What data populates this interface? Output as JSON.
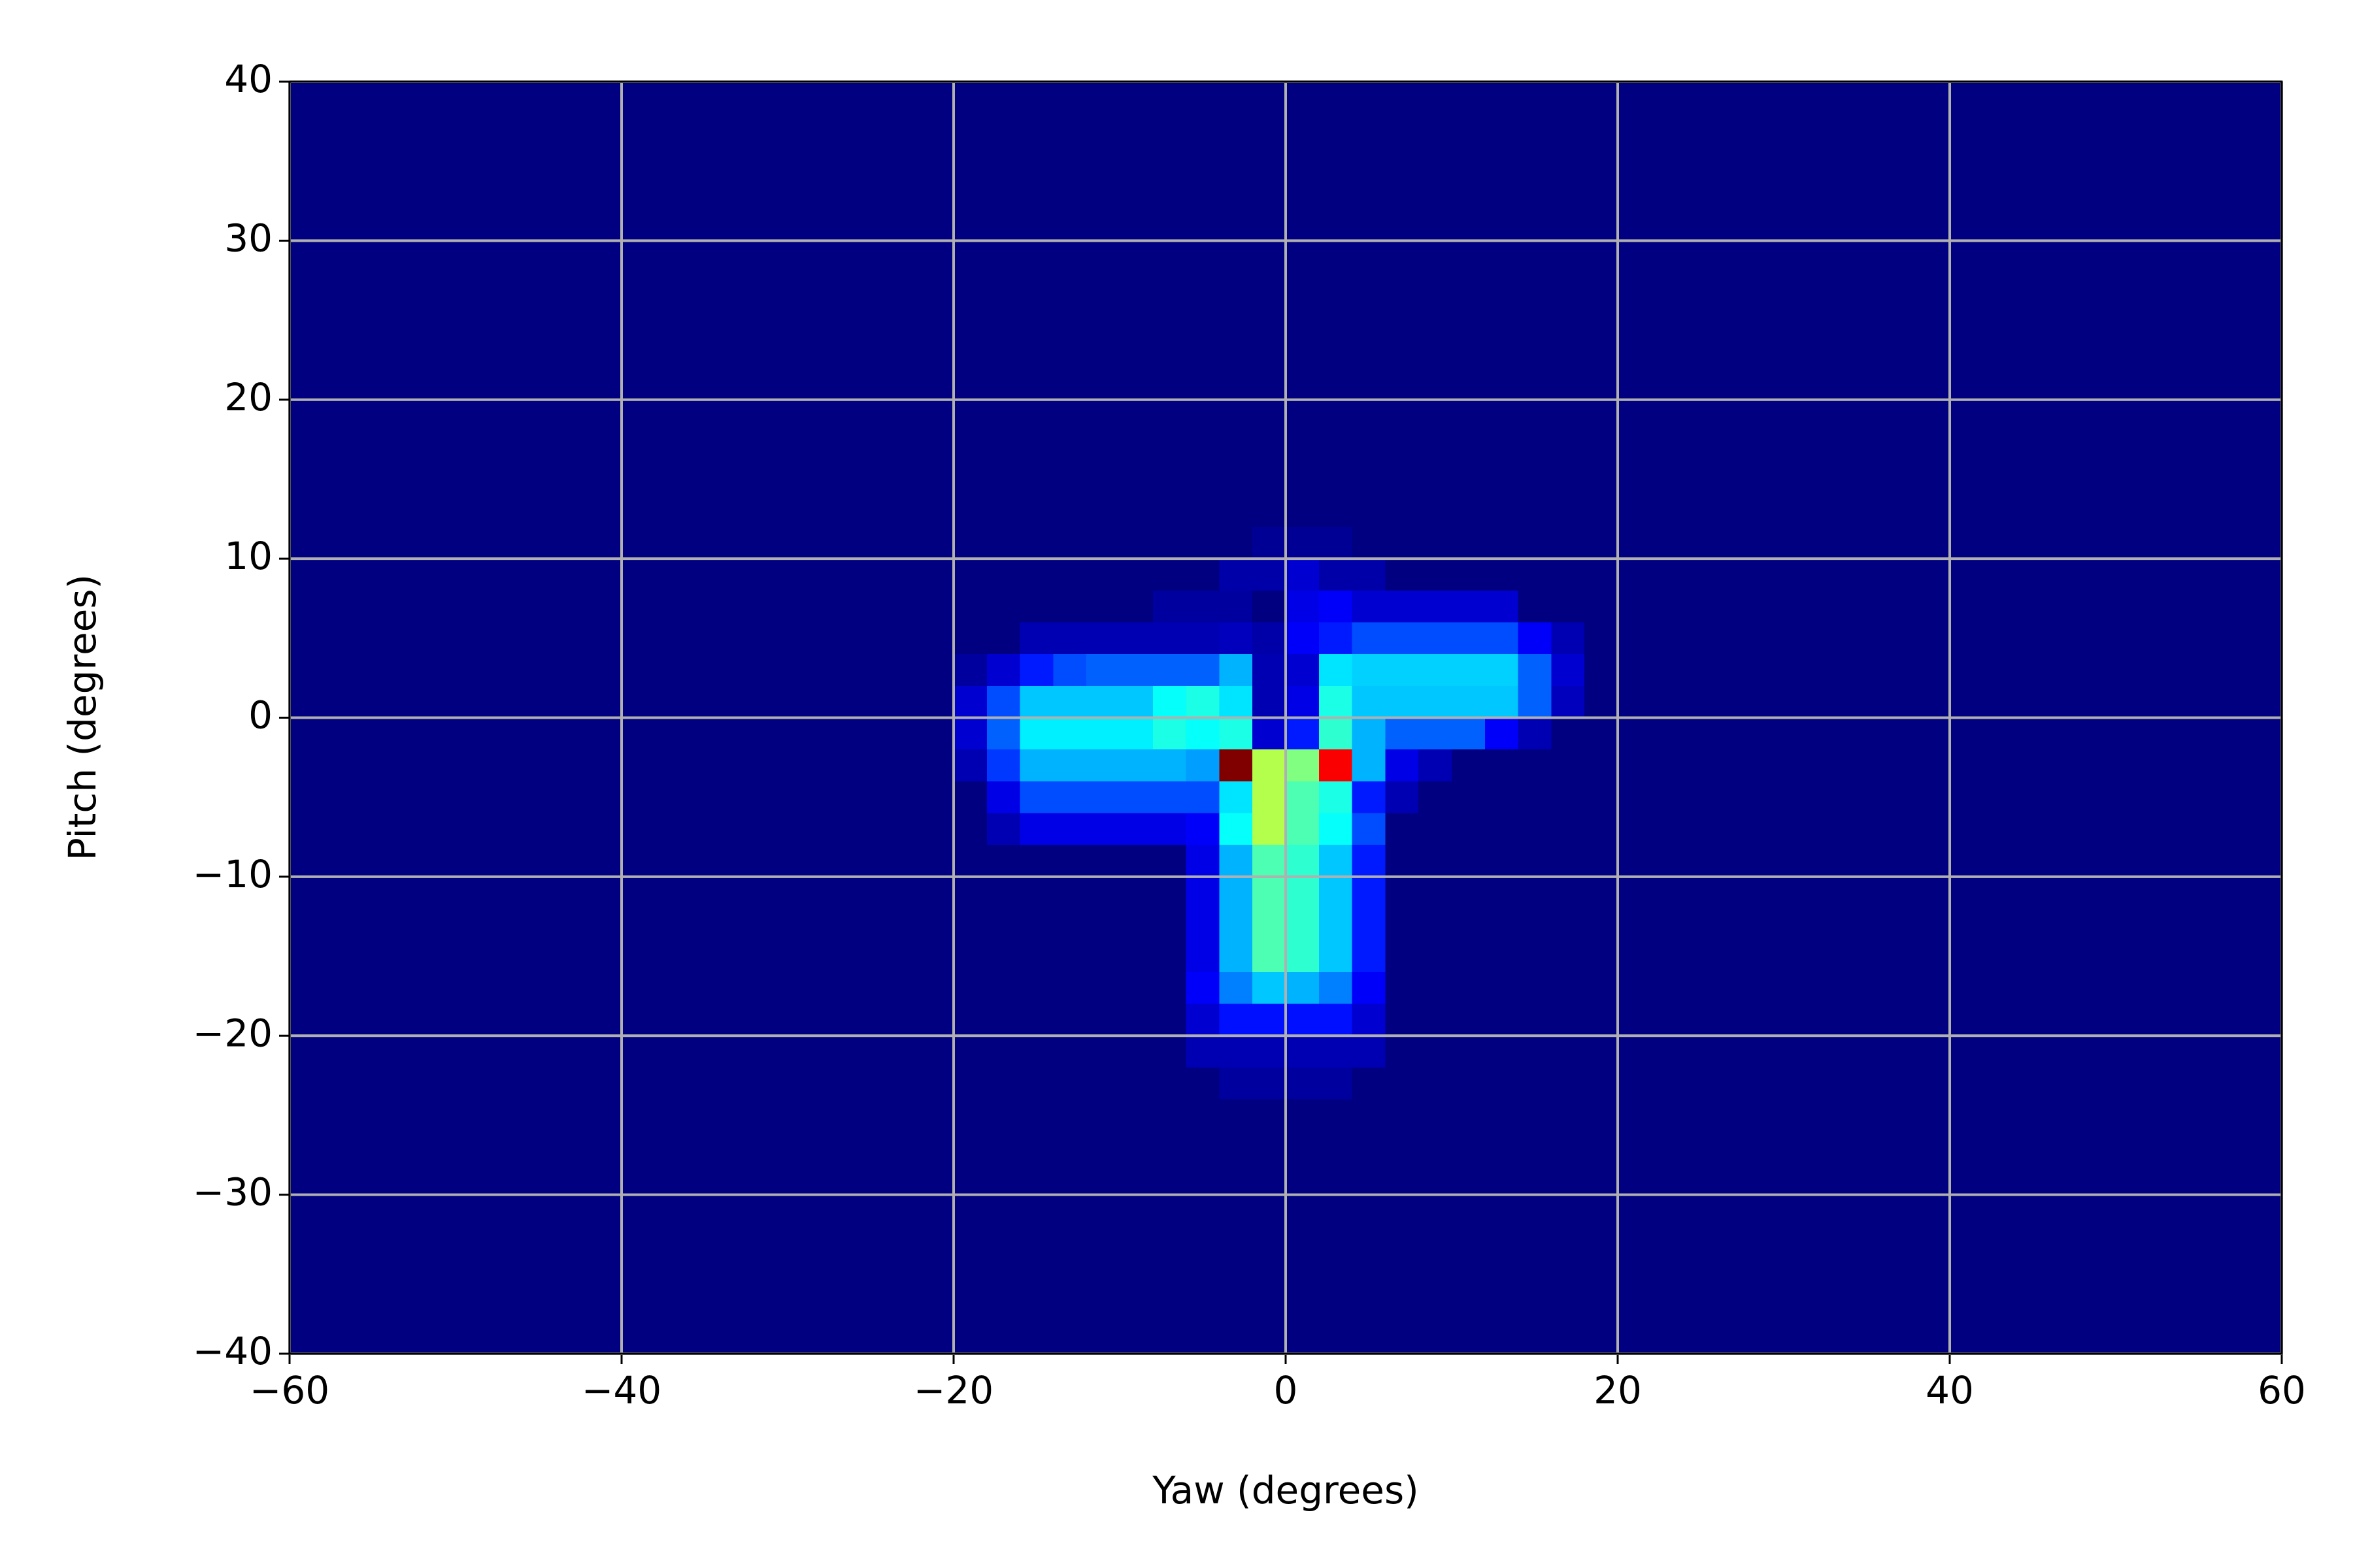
{
  "chart_data": {
    "type": "heatmap",
    "colormap": "jet",
    "zlim": [
      0,
      1
    ],
    "grid": true,
    "xlabel": "Yaw (degrees)",
    "ylabel": "Pitch (degrees)",
    "xlim": [
      -60,
      60
    ],
    "ylim": [
      -40,
      40
    ],
    "xticks": [
      {
        "value": -60,
        "label": "−60"
      },
      {
        "value": -40,
        "label": "−40"
      },
      {
        "value": -20,
        "label": "−20"
      },
      0,
      20,
      40,
      60
    ],
    "yticks": [
      {
        "value": -40,
        "label": "−40"
      },
      {
        "value": -30,
        "label": "−30"
      },
      {
        "value": -20,
        "label": "−20"
      },
      {
        "value": -10,
        "label": "−10"
      },
      0,
      10,
      20,
      30,
      40
    ],
    "xbins": [
      -24,
      -22,
      -20,
      -18,
      -16,
      -14,
      -12,
      -10,
      -8,
      -6,
      -4,
      -2,
      0,
      2,
      4,
      6,
      8,
      10,
      12,
      14,
      16,
      18,
      20,
      22,
      24
    ],
    "ybins": [
      12,
      10,
      8,
      6,
      4,
      2,
      0,
      -2,
      -4,
      -6,
      -8,
      -10,
      -12,
      -14,
      -16,
      -18,
      -20,
      -22,
      -24,
      -26
    ],
    "z": [
      [
        0,
        0,
        0,
        0,
        0,
        0,
        0,
        0,
        0,
        0,
        0,
        0.02,
        0.02,
        0.02,
        0,
        0,
        0,
        0,
        0,
        0,
        0,
        0,
        0,
        0
      ],
      [
        0,
        0,
        0,
        0,
        0,
        0,
        0,
        0,
        0,
        0,
        0.04,
        0.04,
        0.08,
        0.04,
        0.04,
        0,
        0,
        0,
        0,
        0,
        0,
        0,
        0,
        0
      ],
      [
        0,
        0,
        0,
        0,
        0,
        0,
        0,
        0,
        0.03,
        0.03,
        0.03,
        0,
        0.1,
        0.12,
        0.08,
        0.08,
        0.08,
        0.08,
        0.08,
        0,
        0,
        0,
        0,
        0
      ],
      [
        0,
        0,
        0,
        0,
        0.05,
        0.05,
        0.05,
        0.05,
        0.05,
        0.05,
        0.06,
        0.04,
        0.12,
        0.15,
        0.2,
        0.2,
        0.2,
        0.2,
        0.2,
        0.12,
        0.05,
        0,
        0,
        0
      ],
      [
        0,
        0,
        0.03,
        0.08,
        0.15,
        0.2,
        0.22,
        0.22,
        0.22,
        0.22,
        0.3,
        0.05,
        0.08,
        0.35,
        0.33,
        0.33,
        0.33,
        0.33,
        0.33,
        0.22,
        0.08,
        0,
        0,
        0
      ],
      [
        0,
        0,
        0.08,
        0.2,
        0.32,
        0.32,
        0.32,
        0.32,
        0.38,
        0.4,
        0.35,
        0.05,
        0.1,
        0.4,
        0.32,
        0.32,
        0.32,
        0.32,
        0.32,
        0.22,
        0.06,
        0,
        0,
        0
      ],
      [
        0,
        0,
        0.08,
        0.22,
        0.36,
        0.36,
        0.36,
        0.36,
        0.4,
        0.38,
        0.4,
        0.08,
        0.15,
        0.42,
        0.3,
        0.22,
        0.22,
        0.22,
        0.12,
        0.05,
        0,
        0,
        0,
        0
      ],
      [
        0,
        0,
        0.05,
        0.18,
        0.3,
        0.3,
        0.3,
        0.3,
        0.3,
        0.28,
        1,
        0.55,
        0.5,
        0.88,
        0.3,
        0.1,
        0.05,
        0,
        0,
        0,
        0,
        0,
        0,
        0
      ],
      [
        0,
        0,
        0,
        0.1,
        0.2,
        0.2,
        0.2,
        0.2,
        0.2,
        0.2,
        0.35,
        0.55,
        0.45,
        0.4,
        0.15,
        0.05,
        0,
        0,
        0,
        0,
        0,
        0,
        0,
        0
      ],
      [
        0,
        0,
        0,
        0.05,
        0.1,
        0.1,
        0.1,
        0.1,
        0.1,
        0.12,
        0.38,
        0.55,
        0.45,
        0.38,
        0.2,
        0,
        0,
        0,
        0,
        0,
        0,
        0,
        0,
        0
      ],
      [
        0,
        0,
        0,
        0,
        0,
        0,
        0,
        0,
        0,
        0.1,
        0.3,
        0.45,
        0.42,
        0.32,
        0.15,
        0,
        0,
        0,
        0,
        0,
        0,
        0,
        0,
        0
      ],
      [
        0,
        0,
        0,
        0,
        0,
        0,
        0,
        0,
        0,
        0.1,
        0.3,
        0.45,
        0.42,
        0.32,
        0.15,
        0,
        0,
        0,
        0,
        0,
        0,
        0,
        0,
        0
      ],
      [
        0,
        0,
        0,
        0,
        0,
        0,
        0,
        0,
        0,
        0.1,
        0.3,
        0.45,
        0.42,
        0.32,
        0.15,
        0,
        0,
        0,
        0,
        0,
        0,
        0,
        0,
        0
      ],
      [
        0,
        0,
        0,
        0,
        0,
        0,
        0,
        0,
        0,
        0.1,
        0.3,
        0.45,
        0.42,
        0.32,
        0.15,
        0,
        0,
        0,
        0,
        0,
        0,
        0,
        0,
        0
      ],
      [
        0,
        0,
        0,
        0,
        0,
        0,
        0,
        0,
        0,
        0.12,
        0.25,
        0.32,
        0.3,
        0.25,
        0.12,
        0,
        0,
        0,
        0,
        0,
        0,
        0,
        0,
        0
      ],
      [
        0,
        0,
        0,
        0,
        0,
        0,
        0,
        0,
        0,
        0.08,
        0.14,
        0.14,
        0.14,
        0.14,
        0.08,
        0,
        0,
        0,
        0,
        0,
        0,
        0,
        0,
        0
      ],
      [
        0,
        0,
        0,
        0,
        0,
        0,
        0,
        0,
        0,
        0.05,
        0.05,
        0.05,
        0.05,
        0.05,
        0.05,
        0,
        0,
        0,
        0,
        0,
        0,
        0,
        0,
        0
      ],
      [
        0,
        0,
        0,
        0,
        0,
        0,
        0,
        0,
        0,
        0,
        0.03,
        0.03,
        0.03,
        0.03,
        0,
        0,
        0,
        0,
        0,
        0,
        0,
        0,
        0,
        0
      ],
      [
        0,
        0,
        0,
        0,
        0,
        0,
        0,
        0,
        0,
        0,
        0,
        0,
        0,
        0,
        0,
        0,
        0,
        0,
        0,
        0,
        0,
        0,
        0,
        0
      ]
    ]
  }
}
